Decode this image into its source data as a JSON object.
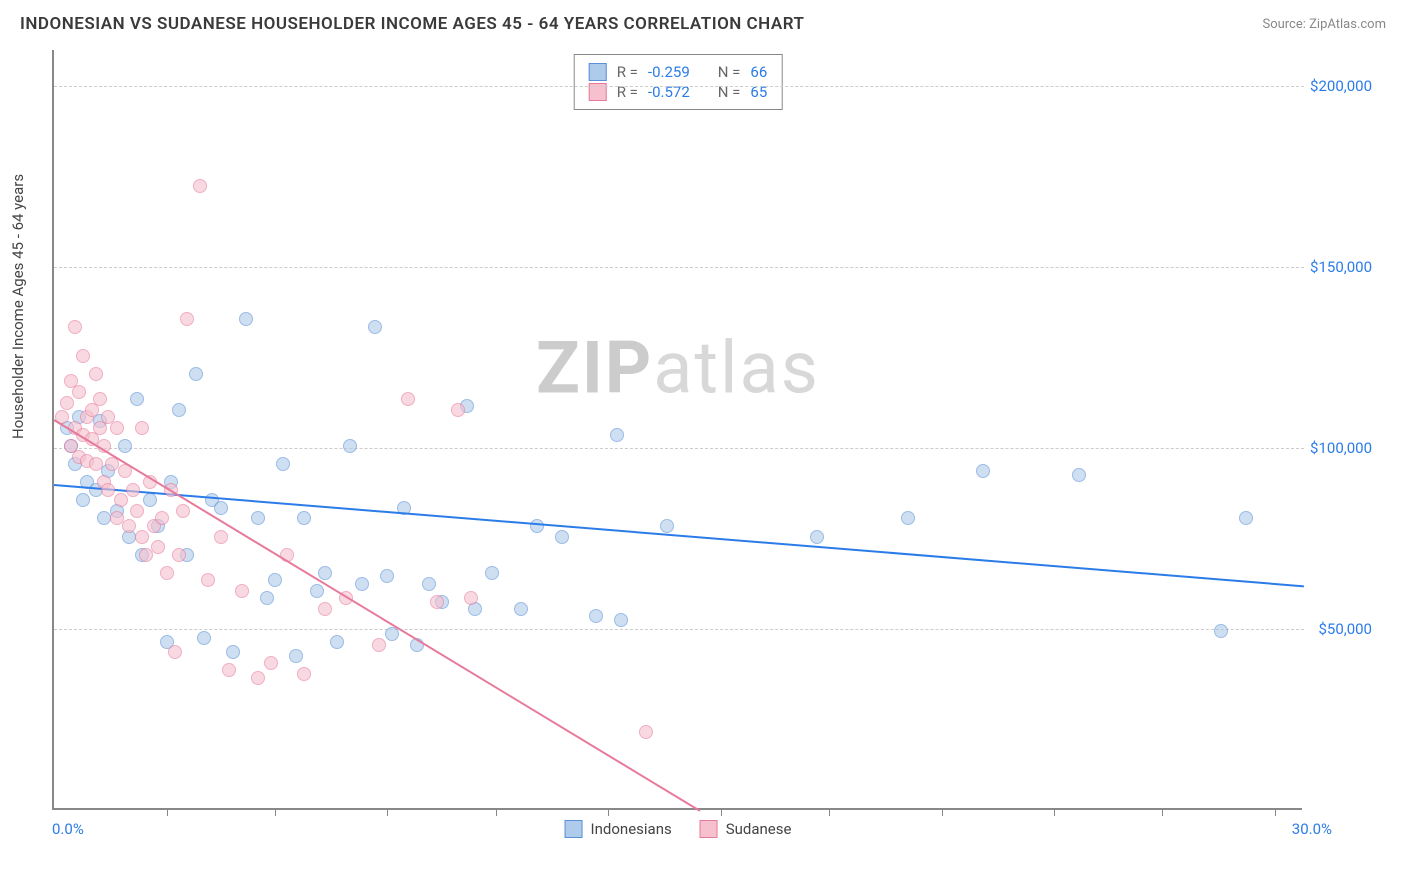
{
  "header": {
    "title": "INDONESIAN VS SUDANESE HOUSEHOLDER INCOME AGES 45 - 64 YEARS CORRELATION CHART",
    "source": "Source: ZipAtlas.com"
  },
  "watermark": {
    "bold": "ZIP",
    "light": "atlas"
  },
  "chart": {
    "type": "scatter",
    "background_color": "#ffffff",
    "grid_color": "#cccccc",
    "axis_color": "#888888",
    "label_color": "#444444",
    "tick_label_color": "#2b7ce9",
    "title_fontsize": 17,
    "label_fontsize": 15,
    "tick_fontsize": 15,
    "y_axis_label": "Householder Income Ages 45 - 64 years",
    "xlim": [
      0,
      30
    ],
    "ylim": [
      0,
      210000
    ],
    "y_ticks": [
      50000,
      100000,
      150000,
      200000
    ],
    "y_tick_labels": [
      "$50,000",
      "$100,000",
      "$150,000",
      "$200,000"
    ],
    "x_start_label": "0.0%",
    "x_end_label": "30.0%",
    "x_tick_positions": [
      2.7,
      5.3,
      8.0,
      10.6,
      13.3,
      16.0,
      18.6,
      21.3,
      24.0,
      26.6,
      29.3
    ],
    "marker_radius": 7,
    "marker_opacity": 0.6,
    "line_width": 2,
    "series": [
      {
        "name": "Indonesians",
        "color_fill": "#aecbeb",
        "color_stroke": "#5a8fd6",
        "line_color": "#2b7ce9",
        "trend": {
          "x1": 0,
          "y1": 90000,
          "x2": 30,
          "y2": 62000
        },
        "r_value": "-0.259",
        "n_value": "66",
        "points": [
          [
            0.3,
            105000
          ],
          [
            0.4,
            100000
          ],
          [
            0.5,
            95000
          ],
          [
            0.6,
            108000
          ],
          [
            0.7,
            85000
          ],
          [
            0.8,
            90000
          ],
          [
            1.0,
            88000
          ],
          [
            1.1,
            107000
          ],
          [
            1.2,
            80000
          ],
          [
            1.3,
            93000
          ],
          [
            1.5,
            82000
          ],
          [
            1.7,
            100000
          ],
          [
            1.8,
            75000
          ],
          [
            2.0,
            113000
          ],
          [
            2.1,
            70000
          ],
          [
            2.3,
            85000
          ],
          [
            2.5,
            78000
          ],
          [
            2.7,
            46000
          ],
          [
            2.8,
            90000
          ],
          [
            3.0,
            110000
          ],
          [
            3.2,
            70000
          ],
          [
            3.4,
            120000
          ],
          [
            3.6,
            47000
          ],
          [
            3.8,
            85000
          ],
          [
            4.0,
            83000
          ],
          [
            4.3,
            43000
          ],
          [
            4.6,
            135000
          ],
          [
            4.9,
            80000
          ],
          [
            5.1,
            58000
          ],
          [
            5.3,
            63000
          ],
          [
            5.5,
            95000
          ],
          [
            5.8,
            42000
          ],
          [
            6.0,
            80000
          ],
          [
            6.3,
            60000
          ],
          [
            6.5,
            65000
          ],
          [
            6.8,
            46000
          ],
          [
            7.1,
            100000
          ],
          [
            7.4,
            62000
          ],
          [
            7.7,
            133000
          ],
          [
            8.0,
            64000
          ],
          [
            8.1,
            48000
          ],
          [
            8.4,
            83000
          ],
          [
            8.7,
            45000
          ],
          [
            9.0,
            62000
          ],
          [
            9.3,
            57000
          ],
          [
            9.9,
            111000
          ],
          [
            10.1,
            55000
          ],
          [
            10.5,
            65000
          ],
          [
            11.2,
            55000
          ],
          [
            11.6,
            78000
          ],
          [
            12.2,
            75000
          ],
          [
            13.0,
            53000
          ],
          [
            13.5,
            103000
          ],
          [
            13.6,
            52000
          ],
          [
            14.7,
            78000
          ],
          [
            18.3,
            75000
          ],
          [
            20.5,
            80000
          ],
          [
            22.3,
            93000
          ],
          [
            24.6,
            92000
          ],
          [
            28.0,
            49000
          ],
          [
            28.6,
            80000
          ]
        ]
      },
      {
        "name": "Sudanese",
        "color_fill": "#f6c0ce",
        "color_stroke": "#e77a9a",
        "line_color": "#e77a9a",
        "trend": {
          "x1": 0,
          "y1": 108000,
          "x2": 15.5,
          "y2": 0
        },
        "r_value": "-0.572",
        "n_value": "65",
        "points": [
          [
            0.2,
            108000
          ],
          [
            0.3,
            112000
          ],
          [
            0.4,
            118000
          ],
          [
            0.4,
            100000
          ],
          [
            0.5,
            105000
          ],
          [
            0.5,
            133000
          ],
          [
            0.6,
            97000
          ],
          [
            0.6,
            115000
          ],
          [
            0.7,
            103000
          ],
          [
            0.7,
            125000
          ],
          [
            0.8,
            108000
          ],
          [
            0.8,
            96000
          ],
          [
            0.9,
            110000
          ],
          [
            0.9,
            102000
          ],
          [
            1.0,
            120000
          ],
          [
            1.0,
            95000
          ],
          [
            1.1,
            105000
          ],
          [
            1.1,
            113000
          ],
          [
            1.2,
            90000
          ],
          [
            1.2,
            100000
          ],
          [
            1.3,
            108000
          ],
          [
            1.3,
            88000
          ],
          [
            1.4,
            95000
          ],
          [
            1.5,
            80000
          ],
          [
            1.5,
            105000
          ],
          [
            1.6,
            85000
          ],
          [
            1.7,
            93000
          ],
          [
            1.8,
            78000
          ],
          [
            1.9,
            88000
          ],
          [
            2.0,
            82000
          ],
          [
            2.1,
            75000
          ],
          [
            2.1,
            105000
          ],
          [
            2.2,
            70000
          ],
          [
            2.3,
            90000
          ],
          [
            2.4,
            78000
          ],
          [
            2.5,
            72000
          ],
          [
            2.6,
            80000
          ],
          [
            2.7,
            65000
          ],
          [
            2.8,
            88000
          ],
          [
            2.9,
            43000
          ],
          [
            3.0,
            70000
          ],
          [
            3.1,
            82000
          ],
          [
            3.2,
            135000
          ],
          [
            3.5,
            172000
          ],
          [
            3.7,
            63000
          ],
          [
            4.0,
            75000
          ],
          [
            4.2,
            38000
          ],
          [
            4.5,
            60000
          ],
          [
            4.9,
            36000
          ],
          [
            5.2,
            40000
          ],
          [
            5.6,
            70000
          ],
          [
            6.0,
            37000
          ],
          [
            6.5,
            55000
          ],
          [
            7.0,
            58000
          ],
          [
            7.8,
            45000
          ],
          [
            8.5,
            113000
          ],
          [
            9.2,
            57000
          ],
          [
            9.7,
            110000
          ],
          [
            10.0,
            58000
          ],
          [
            14.2,
            21000
          ]
        ]
      }
    ],
    "legend_top": {
      "r_label": "R =",
      "n_label": "N ="
    },
    "legend_bottom_labels": [
      "Indonesians",
      "Sudanese"
    ]
  }
}
